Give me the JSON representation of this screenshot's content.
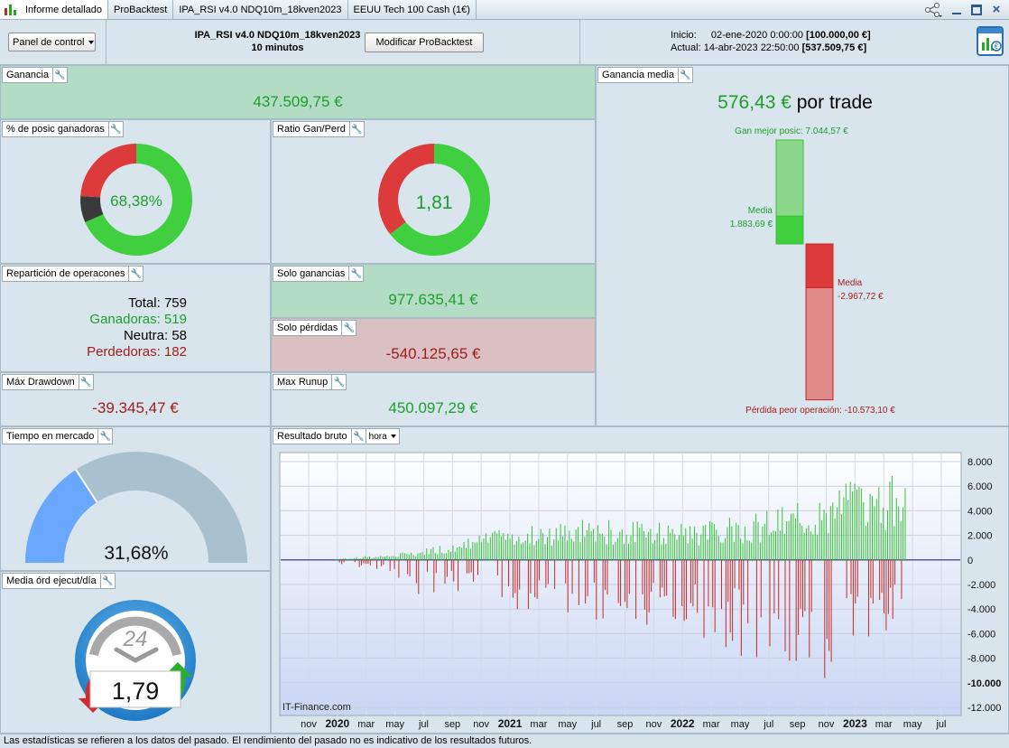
{
  "tabs": [
    {
      "label": "Informe detallado"
    },
    {
      "label": "ProBacktest"
    },
    {
      "label": "IPA_RSI v4.0 NDQ10m_18kven2023"
    },
    {
      "label": "EEUU Tech 100 Cash (1€)"
    }
  ],
  "header": {
    "panel_select": "Panel de control",
    "strategy_name": "IPA_RSI v4.0 NDQ10m_18kven2023",
    "timeframe": "10 minutos",
    "modify_button": "Modificar ProBacktest",
    "start_label": "Inicio:",
    "start_date": "02-ene-2020 0:00:00",
    "start_value": "[100.000,00 €]",
    "end_label": "Actual:",
    "end_date": "14-abr-2023 22:50:00",
    "end_value": "[537.509,75 €]"
  },
  "ganancia": {
    "title": "Ganancia",
    "value": "437.509,75 €"
  },
  "pct_ganadoras": {
    "title": "% de posic ganadoras",
    "value": "68,38%",
    "winners": 519,
    "neutral": 58,
    "losers": 182
  },
  "ratio": {
    "title": "Ratio Gan/Perd",
    "value": "1,81",
    "win_fraction": 0.644
  },
  "reparticion": {
    "title": "Repartición de operacones",
    "total_label": "Total:",
    "total": "759",
    "win_label": "Ganadoras:",
    "win": "519",
    "neutral_label": "Neutra:",
    "neutral": "58",
    "loss_label": "Perdedoras:",
    "loss": "182"
  },
  "solo_ganancias": {
    "title": "Solo ganancias",
    "value": "977.635,41 €"
  },
  "solo_perdidas": {
    "title": "Solo pérdidas",
    "value": "-540.125,65 €"
  },
  "max_drawdown": {
    "title": "Máx Drawdown",
    "value": "-39.345,47 €"
  },
  "max_runup": {
    "title": "Max Runup",
    "value": "450.097,29 €"
  },
  "ganancia_media": {
    "title": "Ganancia media",
    "amount": "576,43 €",
    "suffix": " por trade",
    "best_label": "Gan mejor posic: 7.044,57 €",
    "avg_win_label": "Media",
    "avg_win_value": "1.883,69 €",
    "avg_loss_label": "Media",
    "avg_loss_value": "-2.967,72 €",
    "worst_label": "Pérdida peor operación: -10.573,10 €",
    "best": 7044.57,
    "avg_win": 1883.69,
    "avg_loss": -2967.72,
    "worst": -10573.1
  },
  "tiempo_mercado": {
    "title": "Tiempo en mercado",
    "value": "31,68%",
    "fraction": 0.3168
  },
  "media_ord": {
    "title": "Media órd ejecut/día",
    "value": "1,79",
    "dial_label": "24"
  },
  "resultado_bruto": {
    "title": "Resultado bruto",
    "period_select": "hora",
    "watermark": "IT-Finance.com"
  },
  "chart_data": {
    "type": "bar",
    "y_ticks": [
      "8.000",
      "6.000",
      "4.000",
      "2.000",
      "0",
      "-2.000",
      "-4.000",
      "-6.000",
      "-8.000",
      "-10.000",
      "-12.000"
    ],
    "ylim": [
      -12000,
      8000
    ],
    "x_ticks": [
      "nov",
      "2020",
      "mar",
      "may",
      "jul",
      "sep",
      "nov",
      "2021",
      "mar",
      "may",
      "jul",
      "sep",
      "nov",
      "2022",
      "mar",
      "may",
      "jul",
      "sep",
      "nov",
      "2023",
      "mar",
      "may",
      "jul"
    ],
    "x_ticks_bold": [
      "2020",
      "2021",
      "2022",
      "2023"
    ],
    "envelope_positive": [
      [
        0,
        100
      ],
      [
        2,
        300
      ],
      [
        4,
        500
      ],
      [
        6,
        900
      ],
      [
        8,
        1500
      ],
      [
        10,
        2100
      ],
      [
        12,
        2600
      ],
      [
        14,
        3000
      ],
      [
        16,
        3200
      ],
      [
        18,
        3400
      ],
      [
        20,
        3200
      ],
      [
        22,
        3100
      ],
      [
        24,
        3200
      ],
      [
        26,
        3300
      ],
      [
        28,
        3600
      ],
      [
        30,
        4000
      ],
      [
        32,
        4500
      ],
      [
        34,
        5200
      ],
      [
        36,
        6400
      ],
      [
        38,
        7000
      ],
      [
        40,
        6900
      ]
    ],
    "envelope_negative": [
      [
        0,
        -300
      ],
      [
        2,
        -700
      ],
      [
        4,
        -1500
      ],
      [
        6,
        -3000
      ],
      [
        8,
        -3000
      ],
      [
        10,
        -3200
      ],
      [
        12,
        -3800
      ],
      [
        14,
        -4800
      ],
      [
        16,
        -5300
      ],
      [
        18,
        -5100
      ],
      [
        20,
        -5300
      ],
      [
        22,
        -5500
      ],
      [
        24,
        -5700
      ],
      [
        26,
        -6600
      ],
      [
        28,
        -7500
      ],
      [
        30,
        -9000
      ],
      [
        32,
        -9500
      ],
      [
        34,
        -10600
      ],
      [
        36,
        -8300
      ],
      [
        38,
        -6600
      ],
      [
        40,
        -4500
      ]
    ]
  },
  "footer": {
    "text": "Las estadísticas se refieren a los datos del pasado. El rendimiento del pasado no es indicativo de los resultados futuros."
  }
}
